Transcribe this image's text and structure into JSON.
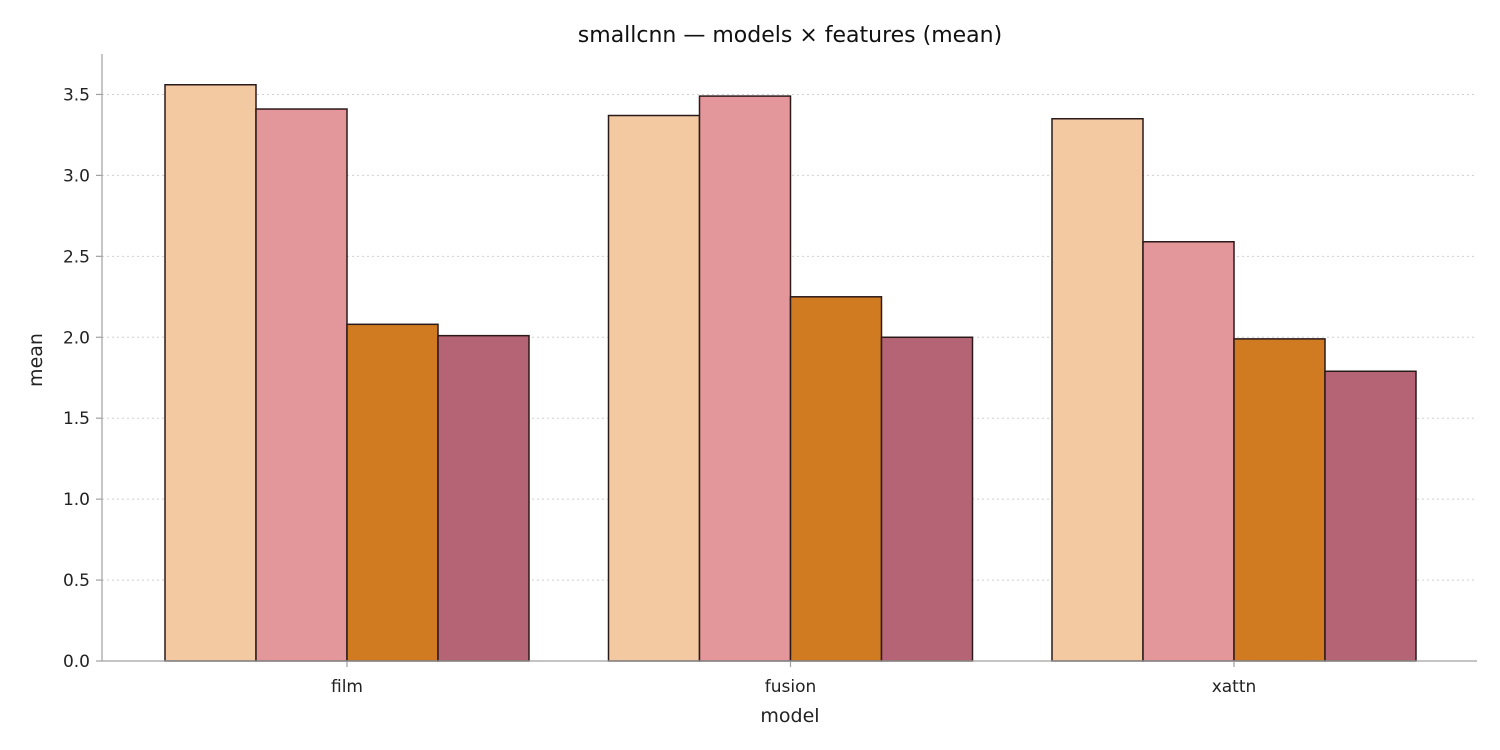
{
  "chart_data": {
    "type": "bar",
    "title": "smallcnn — models × features (mean)",
    "xlabel": "model",
    "ylabel": "mean",
    "categories": [
      "film",
      "fusion",
      "xattn"
    ],
    "ylim": [
      0,
      3.75
    ],
    "yticks": [
      "0.0",
      "0.5",
      "1.0",
      "1.5",
      "2.0",
      "2.5",
      "3.0",
      "3.5"
    ],
    "grid": "horizontal dotted",
    "legend": "none",
    "series": [
      {
        "color": "#f2c9a1",
        "values": [
          3.56,
          3.37,
          3.35
        ]
      },
      {
        "color": "#e3979b",
        "values": [
          3.41,
          3.49,
          2.59
        ]
      },
      {
        "color": "#d07a22",
        "values": [
          2.08,
          2.25,
          1.99
        ]
      },
      {
        "color": "#b46474",
        "values": [
          2.01,
          2.0,
          1.79
        ]
      }
    ]
  }
}
